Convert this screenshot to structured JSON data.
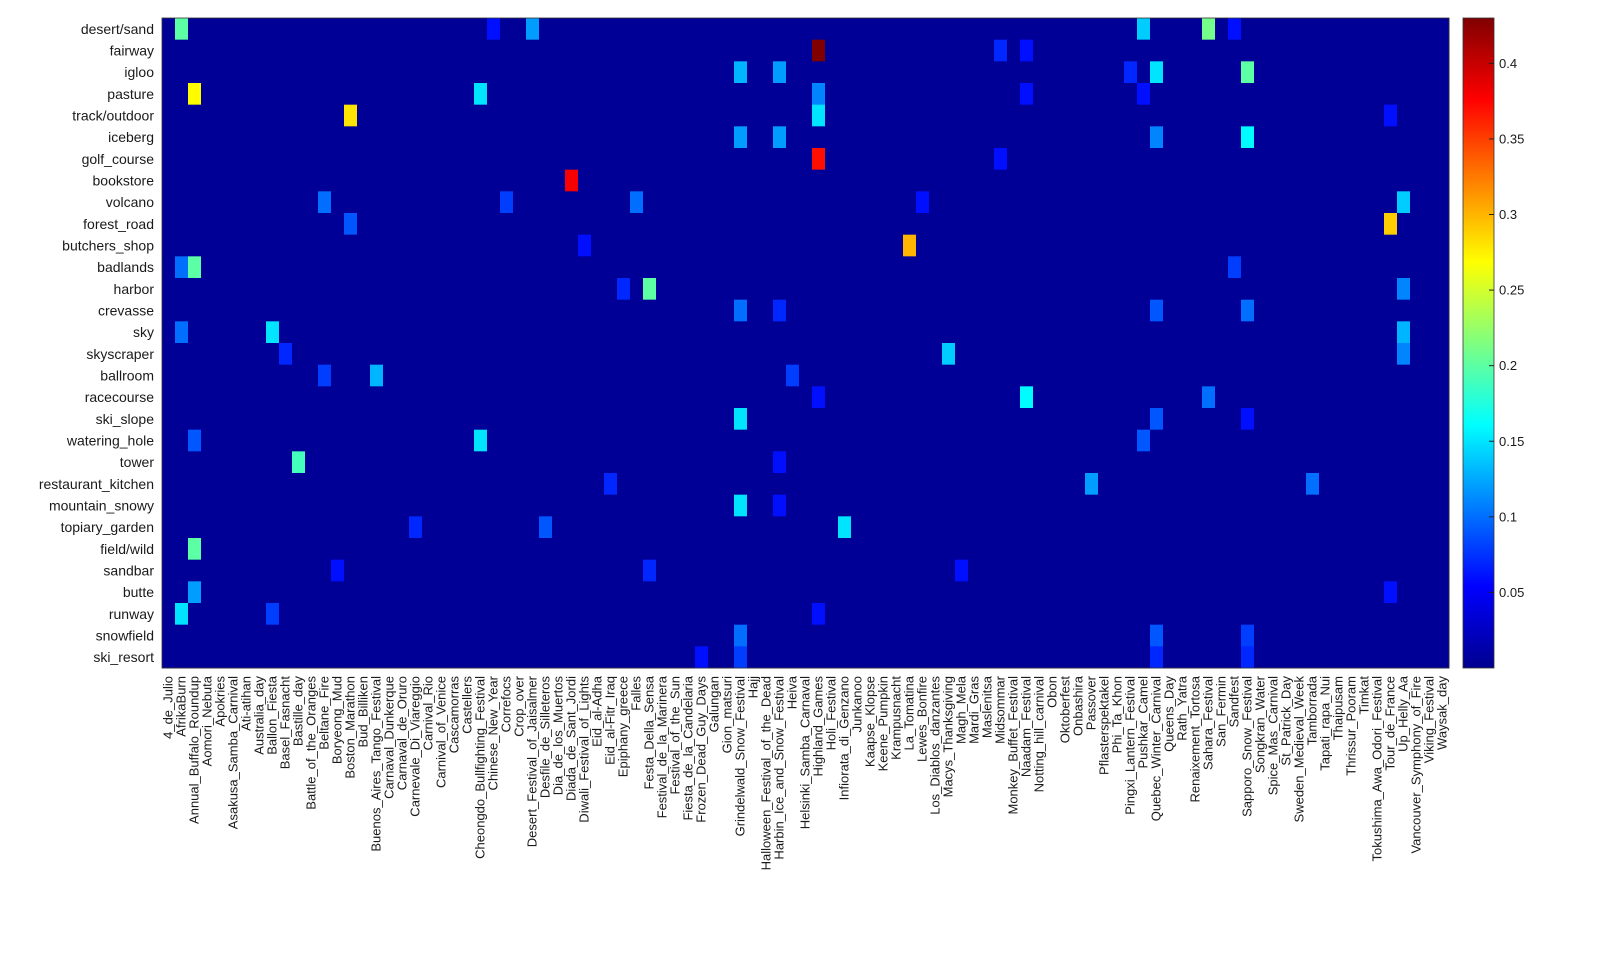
{
  "chart_data": {
    "type": "heatmap",
    "title": "",
    "xlabel": "",
    "ylabel": "",
    "rows": [
      "desert/sand",
      "fairway",
      "igloo",
      "pasture",
      "track/outdoor",
      "iceberg",
      "golf_course",
      "bookstore",
      "volcano",
      "forest_road",
      "butchers_shop",
      "badlands",
      "harbor",
      "crevasse",
      "sky",
      "skyscraper",
      "ballroom",
      "racecourse",
      "ski_slope",
      "watering_hole",
      "tower",
      "restaurant_kitchen",
      "mountain_snowy",
      "topiary_garden",
      "field/wild",
      "sandbar",
      "butte",
      "runway",
      "snowfield",
      "ski_resort"
    ],
    "columns": [
      "4_de_Julio",
      "AfrikaBurn",
      "Annual_Buffalo_Roundup",
      "Aomori_Nebuta",
      "Apokries",
      "Asakusa_Samba_Carnival",
      "Ati-atihan",
      "Australia_day",
      "Ballon_Fiesta",
      "Basel_Fasnacht",
      "Bastille_day",
      "Battle_of_the_Oranges",
      "Beltane_Fire",
      "Boryeong_Mud",
      "Boston_Marathon",
      "Bud_Billiken",
      "Buenos_Aires_Tango_Festival",
      "Carnaval_Dunkerque",
      "Carnaval_de_Oruro",
      "Carnevale_Di_Viareggio",
      "Carnival_Rio",
      "Carnival_of_Venice",
      "Cascamorras",
      "Castellers",
      "Cheongdo_Bullfighting_Festival",
      "Chinese_New_Year",
      "Correfocs",
      "Crop_over",
      "Desert_Festival_of_Jaisalmer",
      "Desfile_de_Silleteros",
      "Dia_de_los_Muertos",
      "Diada_de_Sant_Jordi",
      "Diwali_Festival_of_Lights",
      "Eid_al-Adha",
      "Eid_al-Fitr_Iraq",
      "Epiphany_greece",
      "Falles",
      "Festa_Della_Sensa",
      "Festival_de_la_Marinera",
      "Festival_of_the_Sun",
      "Fiesta_de_la_Candelaria",
      "Frozen_Dead_Guy_Days",
      "Galungan",
      "Gion_matsuri",
      "Grindelwald_Snow_Festival",
      "Hajj",
      "Halloween_Festival_of_the_Dead",
      "Harbin_Ice_and_Snow_Festival",
      "Heiva",
      "Helsinki_Samba_Carnaval",
      "Highland_Games",
      "Holi_Festival",
      "Infiorata_di_Genzano",
      "Junkanoo",
      "Kaapse_Klopse",
      "Keene_Pumpkin",
      "Krampusnacht",
      "La_Tomatina",
      "Lewes_Bonfire",
      "Los_Diablos_danzantes",
      "Macys_Thanksgiving",
      "Magh_Mela",
      "Mardi_Gras",
      "Maslenitsa",
      "Midsommar",
      "Monkey_Buffet_Festival",
      "Naadam_Festival",
      "Notting_hill_carnival",
      "Obon",
      "Oktoberfest",
      "Onbashira",
      "Passover",
      "Pflasterspektakel",
      "Phi_Ta_Khon",
      "Pingxi_Lantern_Festival",
      "Pushkar_Camel",
      "Quebec_Winter_Carnival",
      "Queens_Day",
      "Rath_Yatra",
      "Renaixement_Tortosa",
      "Sahara_Festival",
      "San_Fermin",
      "Sandfest",
      "Sapporo_Snow_Festival",
      "Songkran_Water",
      "Spice_Mas_Carnival",
      "St_Patrick_Day",
      "Sweden_Medieval_Week",
      "Tamborrada",
      "Tapati_rapa_Nui",
      "Thaipusam",
      "Thrissur_Pooram",
      "Timkat",
      "Tokushima_Awa_Odori_Festival",
      "Tour_de_France",
      "Up_Helly_Aa",
      "Vancouver_Symphony_of_Fire",
      "Viking_Festival",
      "Waysak_day"
    ],
    "colorbar": {
      "colormap": "jet",
      "range": [
        0,
        0.43
      ],
      "ticks": [
        0.05,
        0.1,
        0.15,
        0.2,
        0.25,
        0.3,
        0.35,
        0.4
      ],
      "tick_labels": [
        "0.05",
        "0.1",
        "0.15",
        "0.2",
        "0.25",
        "0.3",
        "0.35",
        "0.4"
      ]
    },
    "base_value": 0.01,
    "highlights": [
      {
        "row": "desert/sand",
        "col": "AfrikaBurn",
        "value": 0.2
      },
      {
        "row": "desert/sand",
        "col": "Desert_Festival_of_Jaisalmer",
        "value": 0.12
      },
      {
        "row": "desert/sand",
        "col": "Pushkar_Camel",
        "value": 0.14
      },
      {
        "row": "desert/sand",
        "col": "Sahara_Festival",
        "value": 0.21
      },
      {
        "row": "desert/sand",
        "col": "Chinese_New_Year",
        "value": 0.06
      },
      {
        "row": "desert/sand",
        "col": "Sandfest",
        "value": 0.06
      },
      {
        "row": "fairway",
        "col": "Highland_Games",
        "value": 0.43
      },
      {
        "row": "fairway",
        "col": "Midsommar",
        "value": 0.07
      },
      {
        "row": "fairway",
        "col": "Naadam_Festival",
        "value": 0.06
      },
      {
        "row": "igloo",
        "col": "Grindelwald_Snow_Festival",
        "value": 0.13
      },
      {
        "row": "igloo",
        "col": "Harbin_Ice_and_Snow_Festival",
        "value": 0.12
      },
      {
        "row": "igloo",
        "col": "Quebec_Winter_Carnival",
        "value": 0.15
      },
      {
        "row": "igloo",
        "col": "Sapporo_Snow_Festival",
        "value": 0.2
      },
      {
        "row": "igloo",
        "col": "Pingxi_Lantern_Festival",
        "value": 0.07
      },
      {
        "row": "pasture",
        "col": "Annual_Buffalo_Roundup",
        "value": 0.27
      },
      {
        "row": "pasture",
        "col": "Cheongdo_Bullfighting_Festival",
        "value": 0.15
      },
      {
        "row": "pasture",
        "col": "Highland_Games",
        "value": 0.11
      },
      {
        "row": "pasture",
        "col": "Naadam_Festival",
        "value": 0.06
      },
      {
        "row": "pasture",
        "col": "Pushkar_Camel",
        "value": 0.06
      },
      {
        "row": "track/outdoor",
        "col": "Boston_Marathon",
        "value": 0.28
      },
      {
        "row": "track/outdoor",
        "col": "Highland_Games",
        "value": 0.15
      },
      {
        "row": "track/outdoor",
        "col": "Tour_de_France",
        "value": 0.06
      },
      {
        "row": "iceberg",
        "col": "Grindelwald_Snow_Festival",
        "value": 0.12
      },
      {
        "row": "iceberg",
        "col": "Harbin_Ice_and_Snow_Festival",
        "value": 0.12
      },
      {
        "row": "iceberg",
        "col": "Quebec_Winter_Carnival",
        "value": 0.11
      },
      {
        "row": "iceberg",
        "col": "Sapporo_Snow_Festival",
        "value": 0.16
      },
      {
        "row": "golf_course",
        "col": "Highland_Games",
        "value": 0.37
      },
      {
        "row": "golf_course",
        "col": "Midsommar",
        "value": 0.06
      },
      {
        "row": "bookstore",
        "col": "Diada_de_Sant_Jordi",
        "value": 0.38
      },
      {
        "row": "volcano",
        "col": "Beltane_Fire",
        "value": 0.1
      },
      {
        "row": "volcano",
        "col": "Correfocs",
        "value": 0.08
      },
      {
        "row": "volcano",
        "col": "Falles",
        "value": 0.1
      },
      {
        "row": "volcano",
        "col": "Up_Helly_Aa",
        "value": 0.14
      },
      {
        "row": "volcano",
        "col": "Lewes_Bonfire",
        "value": 0.06
      },
      {
        "row": "forest_road",
        "col": "Boston_Marathon",
        "value": 0.09
      },
      {
        "row": "forest_road",
        "col": "Tour_de_France",
        "value": 0.29
      },
      {
        "row": "butchers_shop",
        "col": "La_Tomatina",
        "value": 0.3
      },
      {
        "row": "butchers_shop",
        "col": "Diwali_Festival_of_Lights",
        "value": 0.06
      },
      {
        "row": "badlands",
        "col": "Annual_Buffalo_Roundup",
        "value": 0.2
      },
      {
        "row": "badlands",
        "col": "AfrikaBurn",
        "value": 0.1
      },
      {
        "row": "badlands",
        "col": "Sandfest",
        "value": 0.08
      },
      {
        "row": "harbor",
        "col": "Festa_Della_Sensa",
        "value": 0.2
      },
      {
        "row": "harbor",
        "col": "Epiphany_greece",
        "value": 0.07
      },
      {
        "row": "harbor",
        "col": "Up_Helly_Aa",
        "value": 0.11
      },
      {
        "row": "crevasse",
        "col": "Grindelwald_Snow_Festival",
        "value": 0.1
      },
      {
        "row": "crevasse",
        "col": "Harbin_Ice_and_Snow_Festival",
        "value": 0.07
      },
      {
        "row": "crevasse",
        "col": "Quebec_Winter_Carnival",
        "value": 0.09
      },
      {
        "row": "crevasse",
        "col": "Sapporo_Snow_Festival",
        "value": 0.1
      },
      {
        "row": "sky",
        "col": "Ballon_Fiesta",
        "value": 0.15
      },
      {
        "row": "sky",
        "col": "AfrikaBurn",
        "value": 0.1
      },
      {
        "row": "sky",
        "col": "Up_Helly_Aa",
        "value": 0.13
      },
      {
        "row": "skyscraper",
        "col": "Macys_Thanksgiving",
        "value": 0.14
      },
      {
        "row": "skyscraper",
        "col": "Up_Helly_Aa",
        "value": 0.11
      },
      {
        "row": "skyscraper",
        "col": "Basel_Fasnacht",
        "value": 0.07
      },
      {
        "row": "ballroom",
        "col": "Buenos_Aires_Tango_Festival",
        "value": 0.13
      },
      {
        "row": "ballroom",
        "col": "Beltane_Fire",
        "value": 0.08
      },
      {
        "row": "ballroom",
        "col": "Heiva",
        "value": 0.08
      },
      {
        "row": "racecourse",
        "col": "Naadam_Festival",
        "value": 0.16
      },
      {
        "row": "racecourse",
        "col": "Sahara_Festival",
        "value": 0.1
      },
      {
        "row": "racecourse",
        "col": "Highland_Games",
        "value": 0.06
      },
      {
        "row": "ski_slope",
        "col": "Grindelwald_Snow_Festival",
        "value": 0.15
      },
      {
        "row": "ski_slope",
        "col": "Quebec_Winter_Carnival",
        "value": 0.09
      },
      {
        "row": "ski_slope",
        "col": "Sapporo_Snow_Festival",
        "value": 0.06
      },
      {
        "row": "watering_hole",
        "col": "Cheongdo_Bullfighting_Festival",
        "value": 0.15
      },
      {
        "row": "watering_hole",
        "col": "Annual_Buffalo_Roundup",
        "value": 0.09
      },
      {
        "row": "watering_hole",
        "col": "Pushkar_Camel",
        "value": 0.09
      },
      {
        "row": "tower",
        "col": "Bastille_day",
        "value": 0.19
      },
      {
        "row": "tower",
        "col": "Harbin_Ice_and_Snow_Festival",
        "value": 0.06
      },
      {
        "row": "restaurant_kitchen",
        "col": "Passover",
        "value": 0.12
      },
      {
        "row": "restaurant_kitchen",
        "col": "Tamborrada",
        "value": 0.1
      },
      {
        "row": "restaurant_kitchen",
        "col": "Eid_al-Fitr_Iraq",
        "value": 0.07
      },
      {
        "row": "mountain_snowy",
        "col": "Grindelwald_Snow_Festival",
        "value": 0.15
      },
      {
        "row": "mountain_snowy",
        "col": "Harbin_Ice_and_Snow_Festival",
        "value": 0.06
      },
      {
        "row": "topiary_garden",
        "col": "Infiorata_di_Genzano",
        "value": 0.15
      },
      {
        "row": "topiary_garden",
        "col": "Desfile_de_Silleteros",
        "value": 0.09
      },
      {
        "row": "topiary_garden",
        "col": "Carnevale_Di_Viareggio",
        "value": 0.07
      },
      {
        "row": "field/wild",
        "col": "Annual_Buffalo_Roundup",
        "value": 0.2
      },
      {
        "row": "sandbar",
        "col": "Festa_Della_Sensa",
        "value": 0.07
      },
      {
        "row": "sandbar",
        "col": "Magh_Mela",
        "value": 0.06
      },
      {
        "row": "sandbar",
        "col": "Boryeong_Mud",
        "value": 0.06
      },
      {
        "row": "butte",
        "col": "Annual_Buffalo_Roundup",
        "value": 0.12
      },
      {
        "row": "butte",
        "col": "Tour_de_France",
        "value": 0.06
      },
      {
        "row": "runway",
        "col": "AfrikaBurn",
        "value": 0.15
      },
      {
        "row": "runway",
        "col": "Ballon_Fiesta",
        "value": 0.08
      },
      {
        "row": "runway",
        "col": "Highland_Games",
        "value": 0.06
      },
      {
        "row": "snowfield",
        "col": "Grindelwald_Snow_Festival",
        "value": 0.1
      },
      {
        "row": "snowfield",
        "col": "Quebec_Winter_Carnival",
        "value": 0.09
      },
      {
        "row": "snowfield",
        "col": "Sapporo_Snow_Festival",
        "value": 0.08
      },
      {
        "row": "ski_resort",
        "col": "Grindelwald_Snow_Festival",
        "value": 0.08
      },
      {
        "row": "ski_resort",
        "col": "Frozen_Dead_Guy_Days",
        "value": 0.06
      },
      {
        "row": "ski_resort",
        "col": "Quebec_Winter_Carnival",
        "value": 0.07
      },
      {
        "row": "ski_resort",
        "col": "Sapporo_Snow_Festival",
        "value": 0.07
      }
    ]
  }
}
